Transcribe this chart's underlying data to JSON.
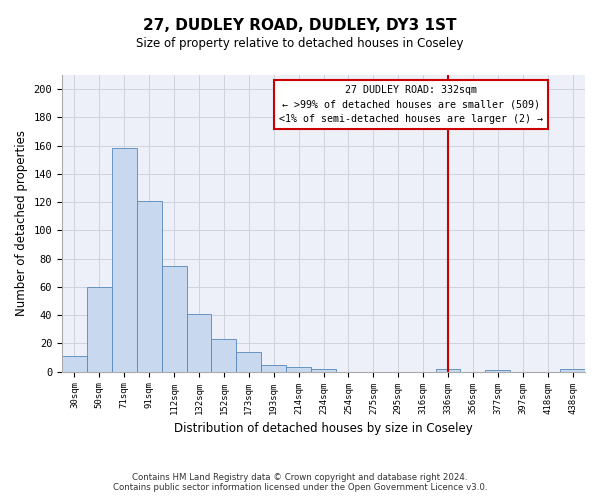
{
  "title": "27, DUDLEY ROAD, DUDLEY, DY3 1ST",
  "subtitle": "Size of property relative to detached houses in Coseley",
  "xlabel": "Distribution of detached houses by size in Coseley",
  "ylabel": "Number of detached properties",
  "categories": [
    "30sqm",
    "50sqm",
    "71sqm",
    "91sqm",
    "112sqm",
    "132sqm",
    "152sqm",
    "173sqm",
    "193sqm",
    "214sqm",
    "234sqm",
    "254sqm",
    "275sqm",
    "295sqm",
    "316sqm",
    "336sqm",
    "356sqm",
    "377sqm",
    "397sqm",
    "418sqm",
    "438sqm"
  ],
  "values": [
    11,
    60,
    158,
    121,
    75,
    41,
    23,
    14,
    5,
    3,
    2,
    0,
    0,
    0,
    0,
    2,
    0,
    1,
    0,
    0,
    2
  ],
  "bar_color": "#c8d8ee",
  "bar_edge_color": "#5588bb",
  "grid_color": "#ccd4e0",
  "vline_x": 15.0,
  "vline_color": "#cc0000",
  "annotation_text": "27 DUDLEY ROAD: 332sqm\n← >99% of detached houses are smaller (509)\n<1% of semi-detached houses are larger (2) →",
  "annotation_box_color": "#cc0000",
  "ylim": [
    0,
    210
  ],
  "yticks": [
    0,
    20,
    40,
    60,
    80,
    100,
    120,
    140,
    160,
    180,
    200
  ],
  "footer_line1": "Contains HM Land Registry data © Crown copyright and database right 2024.",
  "footer_line2": "Contains public sector information licensed under the Open Government Licence v3.0."
}
